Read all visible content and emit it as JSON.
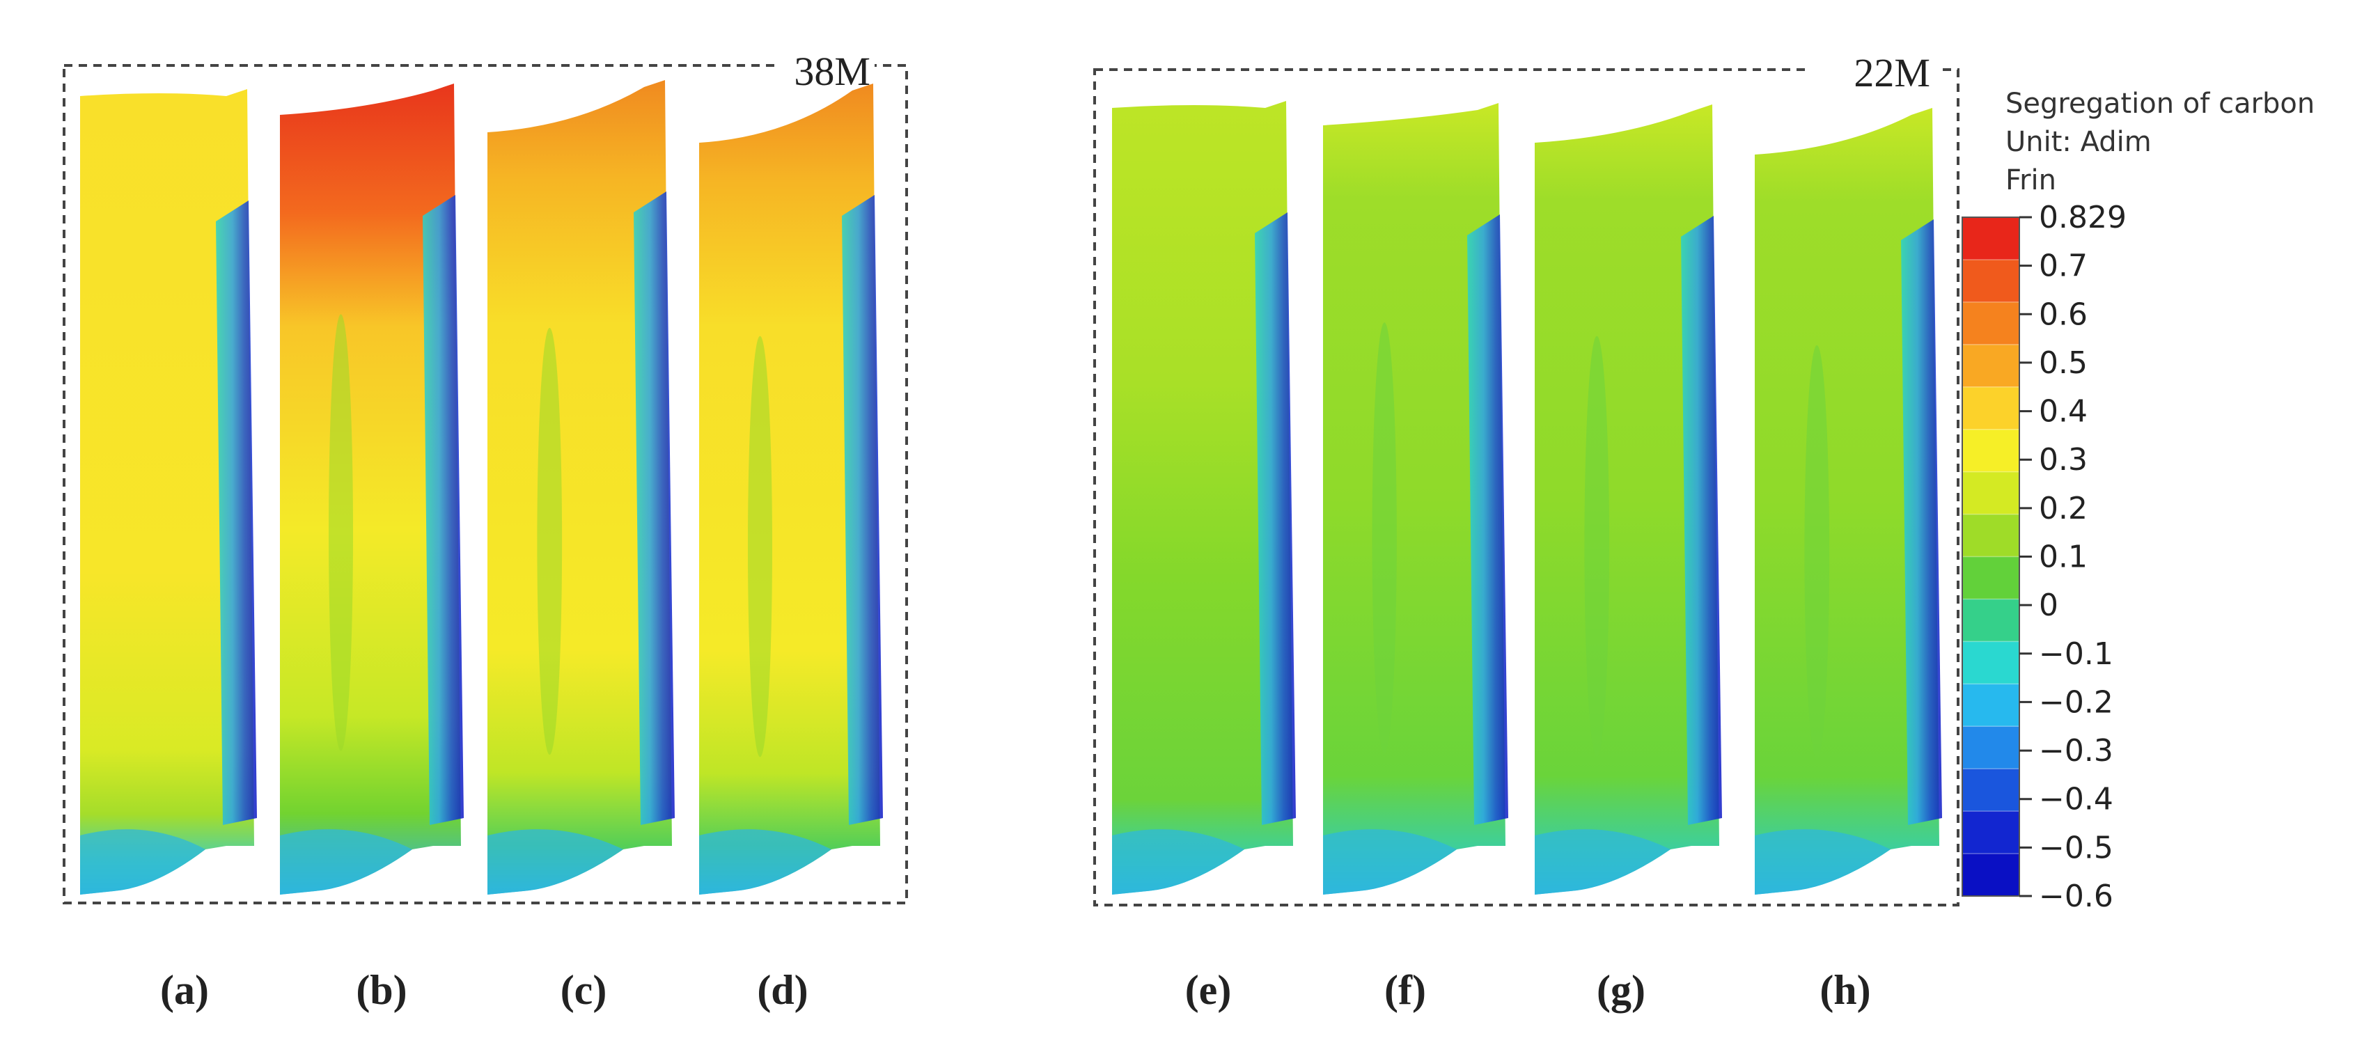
{
  "figure": {
    "groups": [
      {
        "id": "left",
        "label": "38M"
      },
      {
        "id": "right",
        "label": "22M"
      }
    ],
    "panels": [
      {
        "id": "a",
        "caption": "(a)",
        "group": "left",
        "scheme": "yellow"
      },
      {
        "id": "b",
        "caption": "(b)",
        "group": "left",
        "scheme": "redtop"
      },
      {
        "id": "c",
        "caption": "(c)",
        "group": "left",
        "scheme": "orangetop"
      },
      {
        "id": "d",
        "caption": "(d)",
        "group": "left",
        "scheme": "orangetop"
      },
      {
        "id": "e",
        "caption": "(e)",
        "group": "right",
        "scheme": "lime"
      },
      {
        "id": "f",
        "caption": "(f)",
        "group": "right",
        "scheme": "green"
      },
      {
        "id": "g",
        "caption": "(g)",
        "group": "right",
        "scheme": "green"
      },
      {
        "id": "h",
        "caption": "(h)",
        "group": "right",
        "scheme": "green"
      }
    ]
  },
  "legend": {
    "title_line1": "Segregation of carbon",
    "title_line2": "Unit: Adim",
    "title_line3": "Frin",
    "labels": [
      "0.829",
      "0.7",
      "0.6",
      "0.5",
      "0.4",
      "0.3",
      "0.2",
      "0.1",
      "0",
      "−0.1",
      "−0.2",
      "−0.3",
      "−0.4",
      "−0.5",
      "−0.6"
    ],
    "colors": [
      "#e8261a",
      "#f05a1c",
      "#f5821e",
      "#f9a823",
      "#fcd22a",
      "#f6ef27",
      "#d4ea23",
      "#9fdc28",
      "#62d13a",
      "#35d08a",
      "#2ad8d0",
      "#27b9ee",
      "#2289ea",
      "#1a56dd",
      "#1226d0",
      "#0a10c4"
    ]
  }
}
